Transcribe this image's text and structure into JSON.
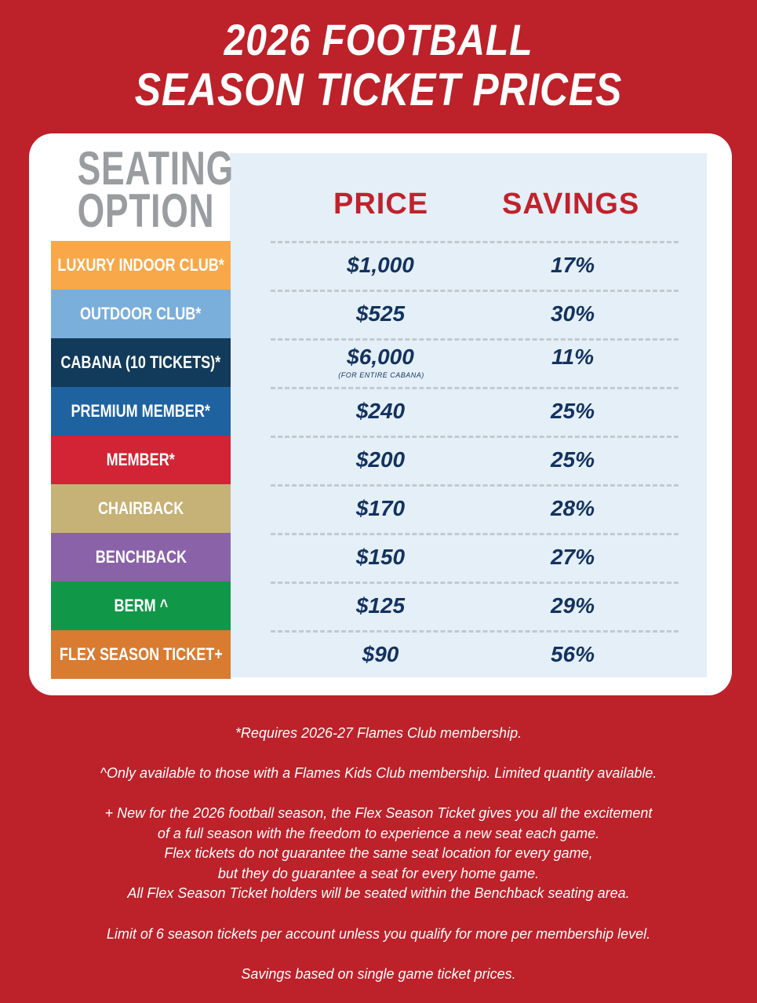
{
  "header": {
    "line1": "2026 FOOTBALL",
    "line2": "SEASON TICKET PRICES"
  },
  "table": {
    "seating_head_1": "SEATING",
    "seating_head_2": "OPTION",
    "price_head": "PRICE",
    "savings_head": "SAVINGS",
    "rows": [
      {
        "label": "LUXURY INDOOR CLUB*",
        "price": "$1,000",
        "savings": "17%",
        "color": "#f8a849"
      },
      {
        "label": "OUTDOOR CLUB*",
        "price": "$525",
        "savings": "30%",
        "color": "#7aaedb"
      },
      {
        "label": "CABANA (10 TICKETS)*",
        "price": "$6,000",
        "price_note": "(FOR ENTIRE CABANA)",
        "savings": "11%",
        "color": "#123a5a"
      },
      {
        "label": "PREMIUM MEMBER*",
        "price": "$240",
        "savings": "25%",
        "color": "#1e62a0"
      },
      {
        "label": "MEMBER*",
        "price": "$200",
        "savings": "25%",
        "color": "#d22434"
      },
      {
        "label": "CHAIRBACK",
        "price": "$170",
        "savings": "28%",
        "color": "#c6b176"
      },
      {
        "label": "BENCHBACK",
        "price": "$150",
        "savings": "27%",
        "color": "#8a62a8"
      },
      {
        "label": "BERM ^",
        "price": "$125",
        "savings": "29%",
        "color": "#119748"
      },
      {
        "label": "FLEX SEASON TICKET+",
        "price": "$90",
        "savings": "56%",
        "color": "#d97b30"
      }
    ]
  },
  "notes": {
    "requires": "*Requires 2026-27 Flames Club membership.",
    "kids": "^Only available to those with a Flames Kids Club membership. Limited quantity available.",
    "flex_1": "+ New for the 2026 football season, the Flex Season Ticket gives you all the excitement",
    "flex_2": "of a full season with the freedom to experience a new seat each game.",
    "flex_3": "Flex tickets do not guarantee the same seat location for every game,",
    "flex_4": "but they do guarantee a seat for every home game.",
    "flex_5": "All Flex Season Ticket holders will be seated within the Benchback seating area.",
    "limit": "Limit of 6 season tickets per account unless you qualify for more per membership level.",
    "savings_basis": "Savings based on single game ticket prices."
  }
}
